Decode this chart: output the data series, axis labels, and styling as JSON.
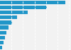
{
  "values": [
    16929,
    12236,
    7239,
    4531,
    3177,
    2277,
    1664,
    1285,
    844,
    533
  ],
  "bar_color": "#2196C8",
  "background_color": "#f2f2f2",
  "xlim": [
    0,
    18500
  ],
  "figsize": [
    1.0,
    0.71
  ],
  "dpi": 100,
  "bar_height": 0.72,
  "grid_color": "#ffffff",
  "grid_lines": [
    3000,
    6000,
    9000,
    12000,
    15000,
    18000
  ]
}
